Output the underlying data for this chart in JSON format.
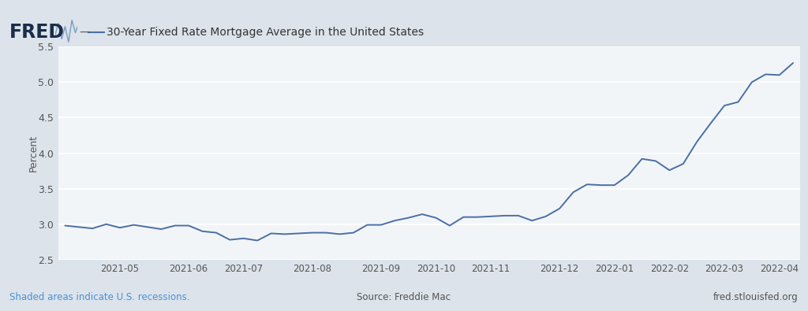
{
  "title": "30-Year Fixed Rate Mortgage Average in the United States",
  "ylabel": "Percent",
  "source_text": "Source: Freddie Mac",
  "shaded_text": "Shaded areas indicate U.S. recessions.",
  "website_text": "fred.stlouisfed.org",
  "fred_text": "FRED",
  "line_color": "#4a6fa5",
  "background_color": "#dce3ea",
  "plot_bg_color": "#f2f5f8",
  "ylim": [
    2.5,
    5.5
  ],
  "yticks": [
    2.5,
    3.0,
    3.5,
    4.0,
    4.5,
    5.0,
    5.5
  ],
  "values": [
    2.98,
    2.96,
    2.94,
    3.0,
    2.95,
    2.99,
    2.96,
    2.93,
    2.98,
    2.98,
    2.9,
    2.88,
    2.78,
    2.8,
    2.77,
    2.87,
    2.86,
    2.87,
    2.88,
    2.88,
    2.86,
    2.88,
    2.99,
    2.99,
    3.05,
    3.09,
    3.14,
    3.09,
    2.98,
    3.1,
    3.1,
    3.11,
    3.12,
    3.12,
    3.05,
    3.11,
    3.22,
    3.45,
    3.56,
    3.55,
    3.55,
    3.69,
    3.92,
    3.89,
    3.76,
    3.85,
    4.16,
    4.42,
    4.67,
    4.72,
    5.0,
    5.11,
    5.1,
    5.27
  ],
  "xtick_labels": [
    "2021-05",
    "2021-06",
    "2021-07",
    "2021-08",
    "2021-09",
    "2021-10",
    "2021-11",
    "2021-12",
    "2022-01",
    "2022-02",
    "2022-03",
    "2022-04"
  ],
  "xtick_positions": [
    4,
    9,
    13,
    18,
    23,
    27,
    31,
    36,
    40,
    44,
    48,
    52
  ]
}
